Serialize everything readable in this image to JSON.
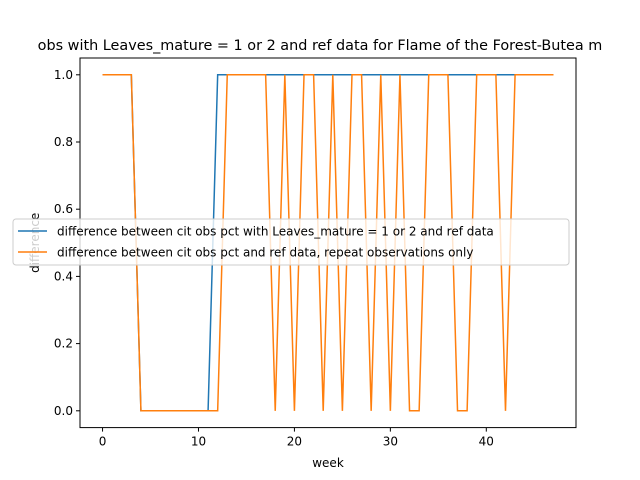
{
  "chart_data": {
    "type": "line",
    "title": "obs with Leaves_mature = 1 or 2 and ref data for Flame of the Forest-Butea m",
    "xlabel": "week",
    "ylabel": "difference",
    "xlim": [
      -2.35,
      49.35
    ],
    "ylim": [
      -0.05,
      1.05
    ],
    "xticks": [
      0,
      10,
      20,
      30,
      40
    ],
    "yticks": [
      0.0,
      0.2,
      0.4,
      0.6,
      0.8,
      1.0
    ],
    "ytick_labels": [
      "0.0",
      "0.2",
      "0.4",
      "0.6",
      "0.8",
      "1.0"
    ],
    "legend_placement": "center-left",
    "grid": false,
    "x": [
      0,
      1,
      2,
      3,
      4,
      5,
      6,
      7,
      8,
      9,
      10,
      11,
      12,
      13,
      14,
      15,
      16,
      17,
      18,
      19,
      20,
      21,
      22,
      23,
      24,
      25,
      26,
      27,
      28,
      29,
      30,
      31,
      32,
      33,
      34,
      35,
      36,
      37,
      38,
      39,
      40,
      41,
      42,
      43,
      44,
      45,
      46,
      47
    ],
    "series": [
      {
        "name": "difference between cit obs pct with Leaves_mature = 1 or 2 and ref data",
        "color": "#1f77b4",
        "values": [
          1,
          1,
          1,
          1,
          0,
          0,
          0,
          0,
          0,
          0,
          0,
          0,
          1,
          1,
          1,
          1,
          1,
          1,
          1,
          1,
          1,
          1,
          1,
          1,
          1,
          1,
          1,
          1,
          1,
          1,
          1,
          1,
          1,
          1,
          1,
          1,
          1,
          1,
          1,
          1,
          1,
          1,
          1,
          1,
          1,
          1,
          1,
          1
        ]
      },
      {
        "name": "difference between cit obs pct and ref data, repeat observations only",
        "color": "#ff7f0e",
        "values": [
          1,
          1,
          1,
          1,
          0,
          0,
          0,
          0,
          0,
          0,
          0,
          0,
          0,
          1,
          1,
          1,
          1,
          1,
          0,
          1,
          0,
          1,
          1,
          0,
          1,
          0,
          1,
          1,
          0,
          1,
          0,
          1,
          0,
          0,
          1,
          1,
          1,
          0,
          0,
          1,
          1,
          1,
          0,
          1,
          1,
          1,
          1,
          1
        ]
      }
    ]
  }
}
